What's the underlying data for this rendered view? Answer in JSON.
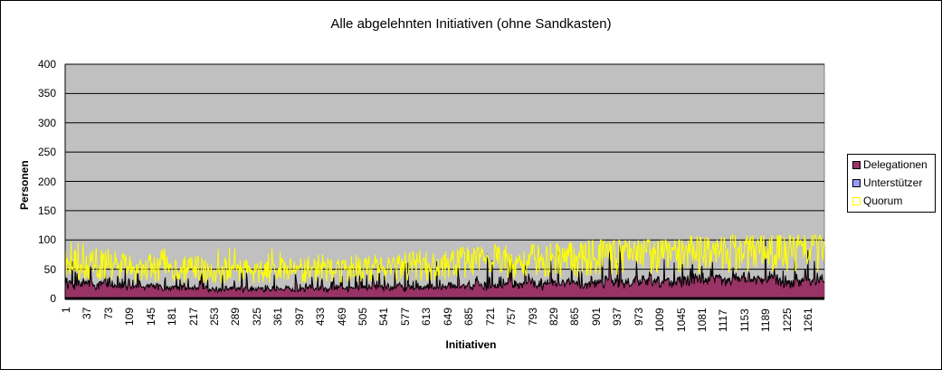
{
  "chart_data": {
    "type": "area",
    "title": "Alle abgelehnten Initiativen (ohne Sandkasten)",
    "xlabel": "Initiativen",
    "ylabel": "Personen",
    "ylim": [
      0,
      400
    ],
    "yticks": [
      0,
      50,
      100,
      150,
      200,
      250,
      300,
      350,
      400
    ],
    "xticks": [
      1,
      37,
      73,
      109,
      145,
      181,
      217,
      253,
      289,
      325,
      361,
      397,
      433,
      469,
      505,
      541,
      577,
      613,
      649,
      685,
      721,
      757,
      793,
      829,
      865,
      901,
      937,
      973,
      1009,
      1045,
      1081,
      1117,
      1153,
      1189,
      1225,
      1261
    ],
    "x_count": 1290,
    "grid": true,
    "legend_position": "right",
    "plot_background": "#c0c0c0",
    "series": [
      {
        "name": "Delegationen",
        "color": "#993366",
        "kind": "stacked-area",
        "segment_avg": [
          12,
          10,
          9,
          8,
          8,
          9,
          10,
          10,
          11,
          12,
          14,
          16,
          18,
          20,
          20,
          18
        ],
        "segment_peak": [
          45,
          40,
          38,
          35,
          40,
          40,
          45,
          60,
          70,
          60,
          75,
          70,
          72,
          70,
          75,
          70
        ]
      },
      {
        "name": "Unterstützer",
        "color": "#9999ff",
        "kind": "area",
        "segment_avg": [
          15,
          12,
          10,
          9,
          9,
          9,
          10,
          10,
          11,
          12,
          12,
          13,
          14,
          14,
          14,
          13
        ],
        "segment_peak": [
          30,
          25,
          22,
          20,
          22,
          22,
          25,
          28,
          28,
          25,
          28,
          28,
          30,
          28,
          28,
          25
        ]
      },
      {
        "name": "Quorum",
        "color": "#ffff00",
        "kind": "line",
        "segment_avg": [
          62,
          55,
          52,
          50,
          50,
          52,
          55,
          58,
          65,
          70,
          72,
          78,
          82,
          85,
          88,
          90
        ],
        "segment_peak": [
          100,
          85,
          85,
          90,
          98,
          80,
          75,
          85,
          88,
          92,
          95,
          100,
          100,
          108,
          108,
          108
        ]
      }
    ],
    "note": "Values are approximate segment-wise readings (16 equal segments across ~1290 initiatives); individual points are noisy."
  },
  "legend": {
    "items": [
      {
        "label": "Delegationen",
        "color": "#993366"
      },
      {
        "label": "Unterstützer",
        "color": "#9999ff"
      },
      {
        "label": "Quorum",
        "color": "#ffff00"
      }
    ]
  }
}
